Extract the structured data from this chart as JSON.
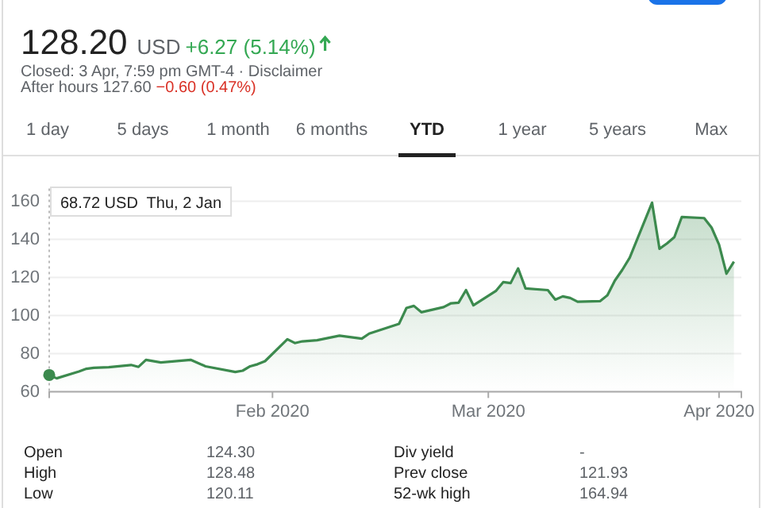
{
  "chart_data": {
    "type": "area",
    "x": [
      "2020-01-02",
      "2020-01-03",
      "2020-01-06",
      "2020-01-07",
      "2020-01-08",
      "2020-01-10",
      "2020-01-13",
      "2020-01-14",
      "2020-01-15",
      "2020-01-17",
      "2020-01-21",
      "2020-01-23",
      "2020-01-27",
      "2020-01-28",
      "2020-01-29",
      "2020-01-30",
      "2020-01-31",
      "2020-02-03",
      "2020-02-04",
      "2020-02-05",
      "2020-02-07",
      "2020-02-10",
      "2020-02-13",
      "2020-02-14",
      "2020-02-18",
      "2020-02-19",
      "2020-02-20",
      "2020-02-21",
      "2020-02-24",
      "2020-02-25",
      "2020-02-26",
      "2020-02-27",
      "2020-02-28",
      "2020-03-02",
      "2020-03-03",
      "2020-03-04",
      "2020-03-05",
      "2020-03-06",
      "2020-03-09",
      "2020-03-10",
      "2020-03-11",
      "2020-03-12",
      "2020-03-13",
      "2020-03-16",
      "2020-03-17",
      "2020-03-18",
      "2020-03-19",
      "2020-03-20",
      "2020-03-23",
      "2020-03-24",
      "2020-03-25",
      "2020-03-26",
      "2020-03-27",
      "2020-03-30",
      "2020-03-31",
      "2020-04-01",
      "2020-04-02",
      "2020-04-03"
    ],
    "series": [
      {
        "color": "#3c8a4e",
        "values": [
          68.72,
          67,
          70.6,
          72,
          72.5,
          72.8,
          74,
          73,
          76.7,
          75.3,
          76.7,
          73.3,
          70.3,
          71,
          73.3,
          74.4,
          76,
          87.5,
          85.5,
          86.4,
          87,
          89.4,
          87.8,
          90.5,
          95.6,
          103.9,
          105,
          101.7,
          104.4,
          106.4,
          106.7,
          113.3,
          105.3,
          112.8,
          117.5,
          117,
          124.7,
          114.2,
          113.3,
          108.3,
          110,
          109.2,
          107.2,
          107.5,
          110.6,
          118.3,
          123.9,
          130.3,
          159.2,
          135,
          137.8,
          141.1,
          151.7,
          151.1,
          146.1,
          137.2,
          121.93,
          128.2
        ]
      },
      {
        "type": "scatter",
        "color": "#3c8a4e",
        "x": [
          "2020-01-02"
        ],
        "values": [
          68.72
        ],
        "marker": "circle"
      }
    ],
    "xlim": [
      "2020-01-02",
      "2020-04-04"
    ],
    "xticks": [
      {
        "value": "2020-02-01",
        "label": "Feb 2020"
      },
      {
        "value": "2020-03-01",
        "label": "Mar 2020"
      },
      {
        "value": "2020-04-01",
        "label": "Apr 2020"
      }
    ],
    "ylim": [
      60,
      160
    ],
    "yticks": [
      60,
      80,
      100,
      120,
      140,
      160
    ],
    "grid": "y",
    "ref_lines": [
      {
        "axis": "x",
        "value": "2020-01-02",
        "label": null,
        "line_style": "dotted",
        "color": "#bbbbbb"
      }
    ],
    "annotations": [
      "128.20",
      "USD",
      "+6.27 (5.14%)",
      "Closed: 3 Apr, 7:59 pm GMT-4 · Disclaimer",
      "After hours 127.60",
      "−0.60 (0.47%)",
      "1 day",
      "5 days",
      "1 month",
      "6 months",
      "YTD",
      "1 year",
      "5 years",
      "Max",
      "Open",
      "124.30",
      "High",
      "128.48",
      "Low",
      "120.11",
      "Div yield",
      "-",
      "Prev close",
      "121.93",
      "52-wk high",
      "164.94",
      "68.72 USD  Thu, 2 Jan"
    ]
  }
}
